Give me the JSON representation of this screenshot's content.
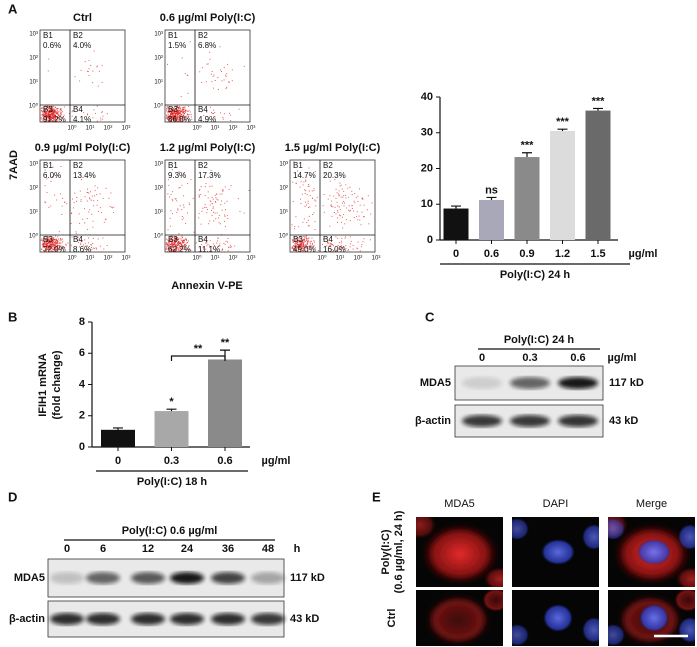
{
  "panel_labels": [
    "A",
    "B",
    "C",
    "D",
    "E"
  ],
  "flow": {
    "y_label": "7AAD",
    "x_label": "Annexin V-PE",
    "axis_ticks": [
      "10³",
      "10²",
      "10¹",
      "10⁰"
    ],
    "plots": [
      {
        "title": "Ctrl",
        "quadrants": [
          {
            "name": "B1",
            "value": "0.6%"
          },
          {
            "name": "B2",
            "value": "4.0%"
          },
          {
            "name": "B3",
            "value": "91.2%"
          },
          {
            "name": "B4",
            "value": "4.1%"
          }
        ]
      },
      {
        "title": "0.6 µg/ml Poly(I:C)",
        "quadrants": [
          {
            "name": "B1",
            "value": "1.5%"
          },
          {
            "name": "B2",
            "value": "6.8%"
          },
          {
            "name": "B3",
            "value": "86.8%"
          },
          {
            "name": "B4",
            "value": "4.9%"
          }
        ]
      },
      {
        "title": "0.9 µg/ml Poly(I:C)",
        "quadrants": [
          {
            "name": "B1",
            "value": "6.0%"
          },
          {
            "name": "B2",
            "value": "13.4%"
          },
          {
            "name": "B3",
            "value": "72.0%"
          },
          {
            "name": "B4",
            "value": "8.6%"
          }
        ]
      },
      {
        "title": "1.2 µg/ml Poly(I:C)",
        "quadrants": [
          {
            "name": "B1",
            "value": "9.3%"
          },
          {
            "name": "B2",
            "value": "17.3%"
          },
          {
            "name": "B3",
            "value": "62.2%"
          },
          {
            "name": "B4",
            "value": "11.1%"
          }
        ]
      },
      {
        "title": "1.5 µg/ml Poly(I:C)",
        "quadrants": [
          {
            "name": "B1",
            "value": "14.7%"
          },
          {
            "name": "B2",
            "value": "20.3%"
          },
          {
            "name": "B3",
            "value": "49.0%"
          },
          {
            "name": "B4",
            "value": "16.0%"
          }
        ]
      }
    ]
  },
  "chart_data": [
    {
      "type": "bar",
      "categories": [
        "0",
        "0.6",
        "0.9",
        "1.2",
        "1.5"
      ],
      "values": [
        8.8,
        11.2,
        23.2,
        30.5,
        36.2
      ],
      "errors": [
        0.7,
        0.7,
        1.2,
        0.5,
        0.6
      ],
      "significance": [
        null,
        "ns",
        "***",
        "***",
        "***"
      ],
      "colors": [
        "#111111",
        "#a8a8b8",
        "#8a8a8a",
        "#dcdcdc",
        "#6a6a6a"
      ],
      "x_label": "Poly(I:C) 24 h",
      "x_unit": "µg/ml",
      "ylim": [
        0,
        40
      ],
      "yticks": [
        0,
        10,
        20,
        30,
        40
      ]
    },
    {
      "type": "bar",
      "categories": [
        "0",
        "0.3",
        "0.6"
      ],
      "values": [
        1.1,
        2.3,
        5.6
      ],
      "errors": [
        0.12,
        0.12,
        0.6
      ],
      "significance": [
        null,
        "*",
        "**"
      ],
      "bracket_label": "**",
      "colors": [
        "#111111",
        "#a8a8a8",
        "#8a8a8a"
      ],
      "y_label": [
        "IFIH1 mRNA",
        "(fold change)"
      ],
      "x_label": "Poly(I:C) 18 h",
      "x_unit": "µg/ml",
      "ylim": [
        0,
        8
      ],
      "yticks": [
        0,
        2,
        4,
        6,
        8
      ]
    }
  ],
  "blot_c": {
    "header": "Poly(I:C) 24 h",
    "lanes": [
      "0",
      "0.3",
      "0.6"
    ],
    "unit": "µg/ml",
    "rows": [
      {
        "name": "MDA5",
        "size": "117 kD"
      },
      {
        "name": "β-actin",
        "size": "43 kD"
      }
    ]
  },
  "blot_d": {
    "header": "Poly(I:C) 0.6 µg/ml",
    "lanes": [
      "0",
      "6",
      "12",
      "24",
      "36",
      "48"
    ],
    "unit": "h",
    "rows": [
      {
        "name": "MDA5",
        "size": "117 kD"
      },
      {
        "name": "β-actin",
        "size": "43 kD"
      }
    ]
  },
  "panel_e": {
    "columns": [
      "MDA5",
      "DAPI",
      "Merge"
    ],
    "rows": [
      [
        "Poly(I:C)",
        "(0.6 µg/ml, 24 h)"
      ],
      [
        "Ctrl"
      ]
    ]
  }
}
